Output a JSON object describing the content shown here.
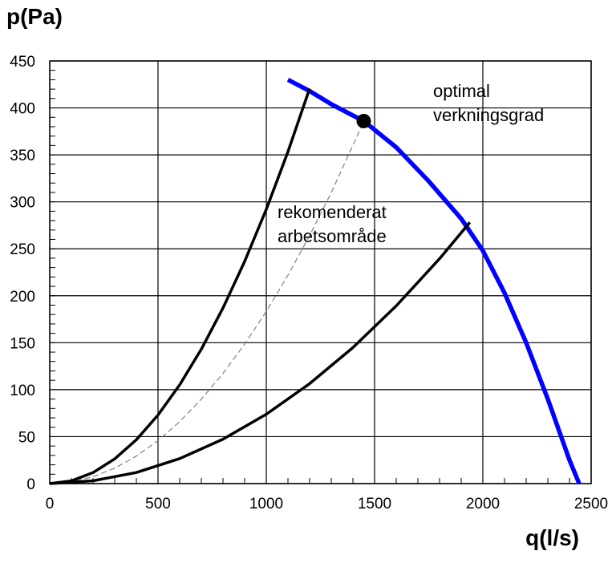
{
  "chart_data": {
    "type": "line",
    "xlabel": "q(l/s)",
    "ylabel": "p(Pa)",
    "xlim": [
      0,
      2500
    ],
    "ylim": [
      0,
      450
    ],
    "x_ticks": [
      0,
      500,
      1000,
      1500,
      2000,
      2500
    ],
    "y_ticks": [
      0,
      50,
      100,
      150,
      200,
      250,
      300,
      350,
      400,
      450
    ],
    "x_minor_step": 100,
    "y_minor_step": 10,
    "grid": true,
    "annotations": {
      "optimal": [
        "optimal",
        "verkningsgrad"
      ],
      "recommended": [
        "rekomenderat",
        "arbetsområde"
      ]
    },
    "series": [
      {
        "role": "fan-curve",
        "color": "#0000ff",
        "style": "solid",
        "x": [
          1100,
          1200,
          1300,
          1450,
          1600,
          1750,
          1900,
          2000,
          2100,
          2200,
          2300,
          2400,
          2445
        ],
        "y": [
          430,
          418,
          404,
          386,
          358,
          322,
          282,
          248,
          203,
          150,
          90,
          25,
          0
        ]
      },
      {
        "role": "system-curve-upper",
        "color": "#000000",
        "style": "solid",
        "x": [
          0,
          100,
          200,
          300,
          400,
          500,
          600,
          700,
          800,
          900,
          1000,
          1100,
          1200
        ],
        "y": [
          0,
          2.9,
          11.7,
          26.3,
          46.7,
          73.0,
          105.1,
          143.1,
          186.9,
          236.5,
          292.0,
          353.3,
          420.5
        ]
      },
      {
        "role": "system-curve-optimal",
        "color": "#808080",
        "style": "dashed",
        "x": [
          0,
          100,
          200,
          300,
          400,
          500,
          600,
          700,
          800,
          900,
          1000,
          1100,
          1200,
          1300,
          1450
        ],
        "y": [
          0,
          1.8,
          7.3,
          16.5,
          29.3,
          45.8,
          66.0,
          89.8,
          117.3,
          148.5,
          183.3,
          221.8,
          264.0,
          309.8,
          385.5
        ]
      },
      {
        "role": "system-curve-lower",
        "color": "#000000",
        "style": "solid",
        "x": [
          0,
          200,
          400,
          600,
          800,
          1000,
          1200,
          1400,
          1600,
          1800,
          1940
        ],
        "y": [
          0,
          3.0,
          11.8,
          26.6,
          47.3,
          73.9,
          106.4,
          144.8,
          189.2,
          239.4,
          278.1
        ]
      }
    ],
    "operating_point": {
      "x": 1450,
      "y": 386
    }
  }
}
